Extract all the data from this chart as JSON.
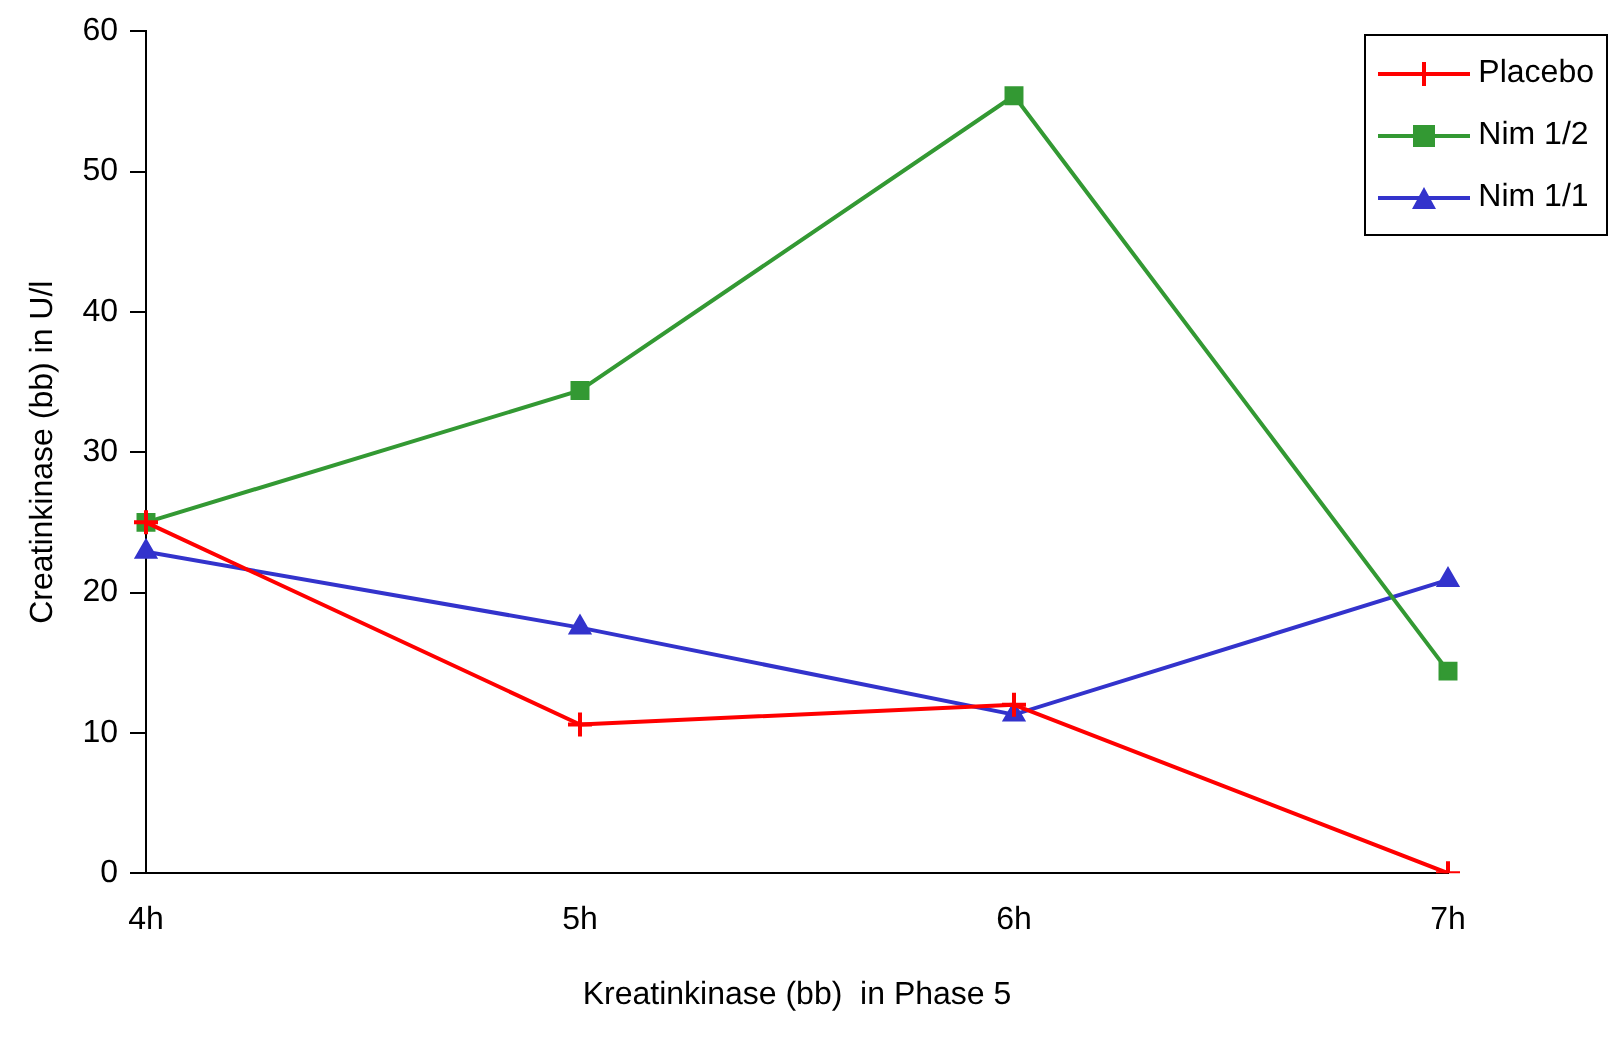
{
  "chart_data": {
    "type": "line",
    "xlabel": "Kreatinkinase (bb)  in Phase 5",
    "ylabel": "Creatinkinase (bb) in U/l",
    "categories": [
      "4h",
      "5h",
      "6h",
      "7h"
    ],
    "series": [
      {
        "name": "Placebo",
        "color": "#ff0000",
        "marker": "cross",
        "values": [
          25,
          10.6,
          12,
          0
        ]
      },
      {
        "name": "Nim 1/2",
        "color": "#339933",
        "marker": "square",
        "values": [
          25,
          34.4,
          55.4,
          14.4
        ]
      },
      {
        "name": "Nim 1/1",
        "color": "#3333cc",
        "marker": "triangle",
        "values": [
          22.9,
          17.5,
          11.3,
          20.9
        ]
      }
    ],
    "ylim": [
      0,
      60
    ],
    "yticks": [
      0,
      10,
      20,
      30,
      40,
      50,
      60
    ],
    "grid": false,
    "legend": "top right",
    "line_style": "solid"
  }
}
